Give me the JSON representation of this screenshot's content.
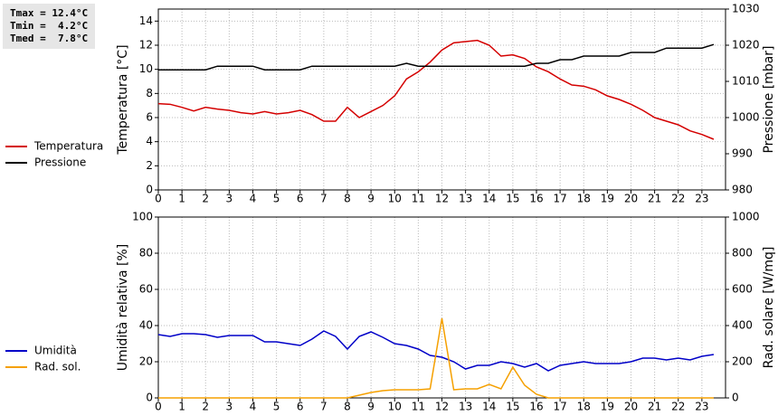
{
  "stats": [
    "Tmax = 12.4°C",
    "Tmin =  4.2°C",
    "Tmed =  7.8°C"
  ],
  "chart_data": [
    {
      "type": "line",
      "ylabel": "Temperatura [°C]",
      "y2label": "Pressione [mbar]",
      "x": [
        0,
        0.5,
        1,
        1.5,
        2,
        2.5,
        3,
        3.5,
        4,
        4.5,
        5,
        5.5,
        6,
        6.5,
        7,
        7.5,
        8,
        8.5,
        9,
        9.5,
        10,
        10.5,
        11,
        11.5,
        12,
        12.5,
        13,
        13.5,
        14,
        14.5,
        15,
        15.5,
        16,
        16.5,
        17,
        17.5,
        18,
        18.5,
        19,
        19.5,
        20,
        20.5,
        21,
        21.5,
        22,
        22.5,
        23,
        23.5
      ],
      "xlim": [
        0,
        24
      ],
      "xticks": [
        0,
        1,
        2,
        3,
        4,
        5,
        6,
        7,
        8,
        9,
        10,
        11,
        12,
        13,
        14,
        15,
        16,
        17,
        18,
        19,
        20,
        21,
        22,
        23
      ],
      "ylim": [
        0,
        15
      ],
      "yticks": [
        0,
        2,
        4,
        6,
        8,
        10,
        12,
        14
      ],
      "y2lim": [
        980,
        1030
      ],
      "y2ticks": [
        980,
        990,
        1000,
        1010,
        1020,
        1030
      ],
      "grid": true,
      "series": [
        {
          "name": "Temperatura",
          "color": "#d40000",
          "values": [
            7.15,
            7.1,
            6.85,
            6.55,
            6.85,
            6.7,
            6.6,
            6.4,
            6.3,
            6.5,
            6.3,
            6.4,
            6.6,
            6.25,
            5.7,
            5.7,
            6.85,
            6.0,
            6.5,
            7.0,
            7.8,
            9.2,
            9.8,
            10.6,
            11.6,
            12.2,
            12.3,
            12.4,
            12.0,
            11.1,
            11.2,
            10.9,
            10.2,
            9.8,
            9.2,
            8.7,
            8.6,
            8.3,
            7.8,
            7.5,
            7.1,
            6.6,
            6.0,
            5.7,
            5.4,
            4.9,
            4.6,
            4.2
          ]
        },
        {
          "name": "Pressione",
          "color": "#000000",
          "axis": "y2",
          "values": [
            1013.2,
            1013.2,
            1013.2,
            1013.2,
            1013.2,
            1014.2,
            1014.2,
            1014.2,
            1014.2,
            1013.2,
            1013.2,
            1013.2,
            1013.2,
            1014.2,
            1014.2,
            1014.2,
            1014.2,
            1014.2,
            1014.2,
            1014.2,
            1014.2,
            1015,
            1014.2,
            1014.2,
            1014.2,
            1014.2,
            1014.2,
            1014.2,
            1014.2,
            1014.2,
            1014.2,
            1014.2,
            1015,
            1015,
            1016,
            1016,
            1017,
            1017,
            1017,
            1017,
            1018,
            1018,
            1018,
            1019.2,
            1019.2,
            1019.2,
            1019.2,
            1020.2
          ]
        }
      ]
    },
    {
      "type": "line",
      "ylabel": "Umidità relativa [%]",
      "y2label": "Rad. solare [W/mq]",
      "x": [
        0,
        0.5,
        1,
        1.5,
        2,
        2.5,
        3,
        3.5,
        4,
        4.5,
        5,
        5.5,
        6,
        6.5,
        7,
        7.5,
        8,
        8.5,
        9,
        9.5,
        10,
        10.5,
        11,
        11.5,
        12,
        12.5,
        13,
        13.5,
        14,
        14.5,
        15,
        15.5,
        16,
        16.5,
        17,
        17.5,
        18,
        18.5,
        19,
        19.5,
        20,
        20.5,
        21,
        21.5,
        22,
        22.5,
        23,
        23.5
      ],
      "xlim": [
        0,
        24
      ],
      "xticks": [
        0,
        1,
        2,
        3,
        4,
        5,
        6,
        7,
        8,
        9,
        10,
        11,
        12,
        13,
        14,
        15,
        16,
        17,
        18,
        19,
        20,
        21,
        22,
        23
      ],
      "ylim": [
        0,
        100
      ],
      "yticks": [
        0,
        20,
        40,
        60,
        80,
        100
      ],
      "y2lim": [
        0,
        1000
      ],
      "y2ticks": [
        0,
        200,
        400,
        600,
        800,
        1000
      ],
      "grid": true,
      "series": [
        {
          "name": "Umidità",
          "color": "#0000c8",
          "values": [
            35,
            34,
            35.5,
            35.5,
            35,
            33.5,
            34.5,
            34.5,
            34.5,
            31,
            31,
            30,
            29,
            32.5,
            37,
            34,
            27,
            34,
            36.5,
            33.5,
            30,
            29,
            27,
            23.5,
            22.5,
            20,
            16,
            18,
            18,
            20,
            19,
            17,
            19,
            15,
            18,
            19,
            20,
            19,
            19,
            19,
            20,
            22,
            22,
            21,
            22,
            21,
            23,
            24
          ]
        },
        {
          "name": "Rad. sol.",
          "color": "#f5a000",
          "axis": "y2",
          "values": [
            0,
            0,
            0,
            0,
            0,
            0,
            0,
            0,
            0,
            0,
            0,
            0,
            0,
            0,
            0,
            0,
            0,
            15,
            30,
            40,
            45,
            45,
            45,
            50,
            440,
            45,
            50,
            50,
            75,
            50,
            170,
            70,
            20,
            0,
            0,
            0,
            0,
            0,
            0,
            0,
            0,
            0,
            0,
            0,
            0,
            0,
            0,
            0
          ]
        }
      ]
    }
  ]
}
